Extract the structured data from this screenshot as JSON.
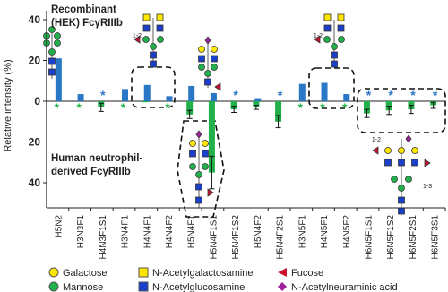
{
  "chart_data": {
    "type": "mirrored_bar",
    "y_axis_label": "Relative intensity (%)",
    "categories": [
      "H5N2",
      "H3N3F1",
      "H4N3F1S1",
      "H3N4F1",
      "H4N4F1",
      "H4N4F2",
      "H5N4F1",
      "H5N4F1S1",
      "H5N4F1S2",
      "H5N4F2",
      "H5N4F2S1",
      "H3N5F1",
      "H4N5F1",
      "H4N5F2",
      "H6N5F1S1",
      "H6N5F1S2",
      "H6N5F2S1",
      "H6N5F3S1"
    ],
    "ylim": [
      0,
      40
    ],
    "yticks": [
      0,
      20,
      40
    ],
    "not_detected_label": "*",
    "series": [
      {
        "label_lines": [
          "Recombinant",
          "(HEK) FcγRIIIb"
        ],
        "color": "#2a78c5",
        "direction": "up",
        "values": [
          21,
          3.5,
          0,
          6,
          8,
          2.5,
          7.5,
          4,
          0,
          1.5,
          0,
          8.5,
          9,
          3.5,
          0,
          0,
          0,
          0
        ]
      },
      {
        "label_lines": [
          "Human neutrophil-",
          "derived FcγRIIIb"
        ],
        "color": "#22b04b",
        "direction": "down",
        "values": [
          0,
          0,
          3,
          0,
          0.5,
          0,
          6.5,
          35,
          4,
          3,
          10,
          0,
          0,
          0,
          6,
          4.5,
          4,
          2
        ],
        "errors": [
          0,
          0,
          2,
          0,
          0,
          0,
          2,
          8,
          1.5,
          1,
          3,
          0,
          0,
          0,
          2,
          2,
          2,
          1.5
        ]
      }
    ],
    "linkage_labels": [
      "1-2",
      "1-2",
      "1-2",
      "1-3"
    ],
    "legend": [
      {
        "symbol": "circle",
        "color": "#ffe600",
        "name": "Galactose"
      },
      {
        "symbol": "square",
        "color": "#ffe600",
        "name": "N-Acetylgalactosamine"
      },
      {
        "symbol": "triangle",
        "color": "#c8102e",
        "name": "Fucose"
      },
      {
        "symbol": "circle",
        "color": "#22b04b",
        "name": "Mannose"
      },
      {
        "symbol": "square",
        "color": "#1a3fc9",
        "name": "N-Acetylglucosamine"
      },
      {
        "symbol": "diamond",
        "color": "#a020a0",
        "name": "N-Acetylneuraminic acid"
      }
    ]
  }
}
